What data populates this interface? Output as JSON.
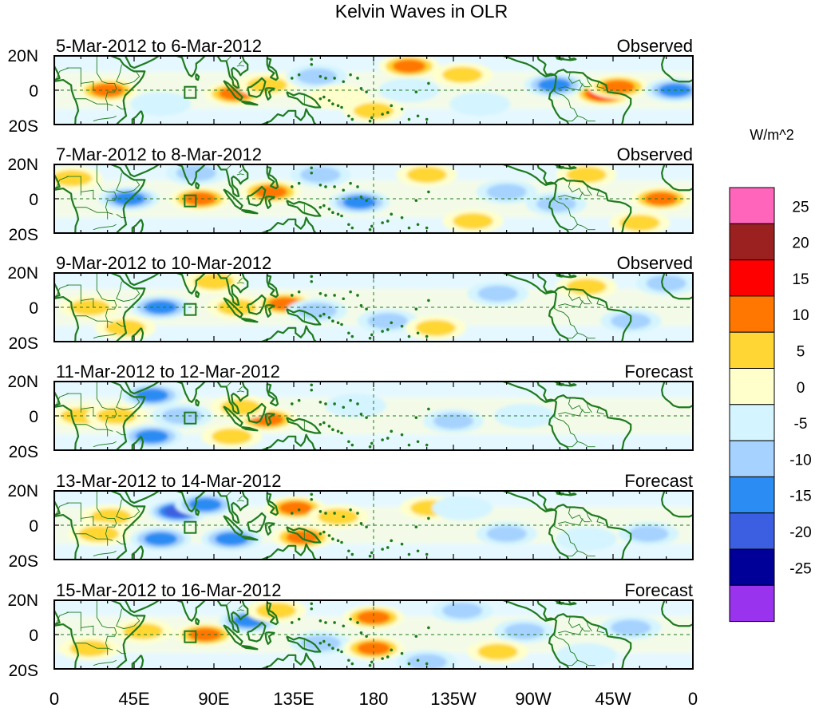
{
  "title": "Kelvin Waves in OLR",
  "colorbar": {
    "units": "W/m^2",
    "labels": [
      "25",
      "20",
      "15",
      "10",
      "5",
      "0",
      "-5",
      "-10",
      "-15",
      "-20",
      "-25"
    ],
    "colors": [
      "#ff66bb",
      "#9b2020",
      "#ff0000",
      "#ff7700",
      "#ffd633",
      "#ffffcc",
      "#d4f4ff",
      "#a6d2ff",
      "#2b8cf3",
      "#3c5ee0",
      "#000099",
      "#9933ee"
    ]
  },
  "x_axis": {
    "ticks": [
      "0",
      "45E",
      "90E",
      "135E",
      "180",
      "135W",
      "90W",
      "45W",
      "0"
    ],
    "lon_range": [
      0,
      360
    ]
  },
  "y_axis": {
    "ticks": [
      "20N",
      "0",
      "20S"
    ],
    "lat_range": [
      -20,
      20
    ]
  },
  "panels": [
    {
      "dates": "5-Mar-2012 to 6-Mar-2012",
      "status": "Observed"
    },
    {
      "dates": "7-Mar-2012 to 8-Mar-2012",
      "status": "Observed"
    },
    {
      "dates": "9-Mar-2012 to 10-Mar-2012",
      "status": "Observed"
    },
    {
      "dates": "11-Mar-2012 to 12-Mar-2012",
      "status": "Forecast"
    },
    {
      "dates": "13-Mar-2012 to 14-Mar-2012",
      "status": "Forecast"
    },
    {
      "dates": "15-Mar-2012 to 16-Mar-2012",
      "status": "Forecast"
    }
  ],
  "anomalies": [
    [
      {
        "lon": 30,
        "lat": 0,
        "v": 12
      },
      {
        "lon": 102,
        "lat": -2,
        "v": 14
      },
      {
        "lon": 120,
        "lat": 3,
        "v": 8
      },
      {
        "lon": 200,
        "lat": 14,
        "v": 12
      },
      {
        "lon": 180,
        "lat": -12,
        "v": 6
      },
      {
        "lon": 310,
        "lat": -2,
        "v": 18
      },
      {
        "lon": 318,
        "lat": 2,
        "v": 14
      },
      {
        "lon": 282,
        "lat": 3,
        "v": -12
      },
      {
        "lon": 350,
        "lat": 0,
        "v": -12
      },
      {
        "lon": 148,
        "lat": 8,
        "v": -6
      },
      {
        "lon": 60,
        "lat": -8,
        "v": -5
      },
      {
        "lon": 240,
        "lat": -8,
        "v": -5
      },
      {
        "lon": 230,
        "lat": 9,
        "v": 7
      },
      {
        "lon": 160,
        "lat": -4,
        "v": 5
      },
      {
        "lon": 200,
        "lat": 0,
        "v": -4
      }
    ],
    [
      {
        "lon": 82,
        "lat": 0,
        "v": 14
      },
      {
        "lon": 122,
        "lat": 4,
        "v": 13
      },
      {
        "lon": 210,
        "lat": 14,
        "v": 10
      },
      {
        "lon": 236,
        "lat": -13,
        "v": 8
      },
      {
        "lon": 342,
        "lat": 0,
        "v": 12
      },
      {
        "lon": 42,
        "lat": 0,
        "v": -14
      },
      {
        "lon": 172,
        "lat": -2,
        "v": -11
      },
      {
        "lon": 283,
        "lat": -3,
        "v": -7
      },
      {
        "lon": 300,
        "lat": 14,
        "v": 8
      },
      {
        "lon": 330,
        "lat": -14,
        "v": 8
      },
      {
        "lon": 80,
        "lat": 15,
        "v": -6
      },
      {
        "lon": 150,
        "lat": 14,
        "v": -6
      },
      {
        "lon": 255,
        "lat": 4,
        "v": -6
      },
      {
        "lon": 10,
        "lat": 12,
        "v": 7
      }
    ],
    [
      {
        "lon": 60,
        "lat": 0,
        "v": -13
      },
      {
        "lon": 103,
        "lat": 0,
        "v": 10
      },
      {
        "lon": 130,
        "lat": 2,
        "v": 12
      },
      {
        "lon": 148,
        "lat": -2,
        "v": -7
      },
      {
        "lon": 188,
        "lat": -8,
        "v": -6
      },
      {
        "lon": 250,
        "lat": 8,
        "v": -6
      },
      {
        "lon": 325,
        "lat": -8,
        "v": -8
      },
      {
        "lon": 345,
        "lat": 14,
        "v": -7
      },
      {
        "lon": 20,
        "lat": 0,
        "v": 6
      },
      {
        "lon": 300,
        "lat": 12,
        "v": 7
      },
      {
        "lon": 215,
        "lat": -12,
        "v": 6
      },
      {
        "lon": 90,
        "lat": 15,
        "v": 7
      },
      {
        "lon": 40,
        "lat": -12,
        "v": 6
      }
    ],
    [
      {
        "lon": 55,
        "lat": 12,
        "v": -12
      },
      {
        "lon": 55,
        "lat": -12,
        "v": -11
      },
      {
        "lon": 72,
        "lat": 0,
        "v": -9
      },
      {
        "lon": 120,
        "lat": -2,
        "v": 11
      },
      {
        "lon": 105,
        "lat": 5,
        "v": 6
      },
      {
        "lon": 15,
        "lat": 0,
        "v": 7
      },
      {
        "lon": 35,
        "lat": 0,
        "v": 8
      },
      {
        "lon": 225,
        "lat": -3,
        "v": -6
      },
      {
        "lon": 265,
        "lat": 0,
        "v": -5
      },
      {
        "lon": 170,
        "lat": 6,
        "v": -4
      },
      {
        "lon": 100,
        "lat": -12,
        "v": 6
      }
    ],
    [
      {
        "lon": 70,
        "lat": 8,
        "v": -17
      },
      {
        "lon": 60,
        "lat": -8,
        "v": -15
      },
      {
        "lon": 100,
        "lat": -8,
        "v": -12
      },
      {
        "lon": 85,
        "lat": 12,
        "v": -14
      },
      {
        "lon": 32,
        "lat": 5,
        "v": 10
      },
      {
        "lon": 25,
        "lat": -5,
        "v": 8
      },
      {
        "lon": 140,
        "lat": -7,
        "v": 12
      },
      {
        "lon": 136,
        "lat": 10,
        "v": 12
      },
      {
        "lon": 160,
        "lat": 5,
        "v": 7
      },
      {
        "lon": 212,
        "lat": 10,
        "v": 6
      },
      {
        "lon": 255,
        "lat": -5,
        "v": -8
      },
      {
        "lon": 335,
        "lat": -5,
        "v": -6
      },
      {
        "lon": 300,
        "lat": -8,
        "v": -5
      },
      {
        "lon": 230,
        "lat": 10,
        "v": -5
      }
    ],
    [
      {
        "lon": 85,
        "lat": 0,
        "v": 14
      },
      {
        "lon": 50,
        "lat": 2,
        "v": 8
      },
      {
        "lon": 110,
        "lat": 8,
        "v": -14
      },
      {
        "lon": 150,
        "lat": -5,
        "v": -8
      },
      {
        "lon": 180,
        "lat": 10,
        "v": 12
      },
      {
        "lon": 180,
        "lat": -8,
        "v": 12
      },
      {
        "lon": 210,
        "lat": -16,
        "v": -10
      },
      {
        "lon": 230,
        "lat": 14,
        "v": -9
      },
      {
        "lon": 265,
        "lat": 2,
        "v": -8
      },
      {
        "lon": 325,
        "lat": 4,
        "v": -7
      },
      {
        "lon": 250,
        "lat": -10,
        "v": 7
      },
      {
        "lon": 125,
        "lat": 14,
        "v": 7
      },
      {
        "lon": 20,
        "lat": -8,
        "v": 6
      },
      {
        "lon": 300,
        "lat": -12,
        "v": -5
      }
    ]
  ]
}
